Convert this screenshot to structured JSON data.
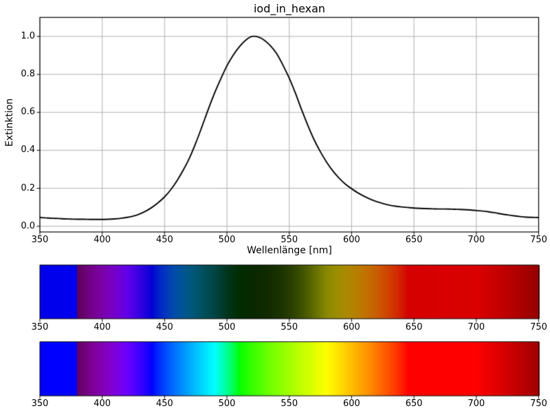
{
  "figure": {
    "background": "#ffffff",
    "text_color": "#000000"
  },
  "chart_data": [
    {
      "type": "line",
      "name": "absorption-spectrum",
      "title": "iod_in_hexan",
      "xlabel": "Wellenlänge [nm]",
      "ylabel": "Extinktion",
      "xlim": [
        350,
        750
      ],
      "ylim": [
        -0.03,
        1.1
      ],
      "xticks": [
        350,
        400,
        450,
        500,
        550,
        600,
        650,
        700,
        750
      ],
      "yticks": [
        0.0,
        0.2,
        0.4,
        0.6,
        0.8,
        1.0
      ],
      "ytick_labels": [
        "0.0",
        "0.2",
        "0.4",
        "0.6",
        "0.8",
        "1.0"
      ],
      "grid": true,
      "grid_color": "#b0b0b0",
      "axis_color": "#000000",
      "line_color": "#000000",
      "legend": "none",
      "series": [
        {
          "name": "Extinktion",
          "x": [
            350,
            355,
            360,
            365,
            370,
            375,
            380,
            385,
            390,
            395,
            400,
            405,
            410,
            415,
            420,
            425,
            430,
            435,
            440,
            445,
            450,
            455,
            460,
            465,
            470,
            475,
            480,
            485,
            490,
            495,
            500,
            505,
            510,
            515,
            520,
            525,
            530,
            535,
            540,
            545,
            550,
            555,
            560,
            565,
            570,
            575,
            580,
            585,
            590,
            595,
            600,
            605,
            610,
            615,
            620,
            625,
            630,
            635,
            640,
            645,
            650,
            655,
            660,
            665,
            670,
            675,
            680,
            685,
            690,
            695,
            700,
            705,
            710,
            715,
            720,
            725,
            730,
            735,
            740,
            745,
            750
          ],
          "y": [
            0.046,
            0.044,
            0.042,
            0.041,
            0.039,
            0.038,
            0.037,
            0.037,
            0.036,
            0.036,
            0.036,
            0.037,
            0.039,
            0.042,
            0.047,
            0.054,
            0.065,
            0.08,
            0.1,
            0.125,
            0.155,
            0.193,
            0.24,
            0.296,
            0.36,
            0.438,
            0.525,
            0.615,
            0.7,
            0.775,
            0.845,
            0.901,
            0.946,
            0.98,
            1.0,
            0.997,
            0.98,
            0.95,
            0.908,
            0.848,
            0.78,
            0.7,
            0.612,
            0.53,
            0.455,
            0.392,
            0.337,
            0.291,
            0.253,
            0.222,
            0.198,
            0.176,
            0.158,
            0.143,
            0.13,
            0.12,
            0.112,
            0.106,
            0.102,
            0.099,
            0.096,
            0.094,
            0.093,
            0.092,
            0.091,
            0.091,
            0.09,
            0.089,
            0.088,
            0.086,
            0.083,
            0.08,
            0.076,
            0.071,
            0.065,
            0.06,
            0.055,
            0.051,
            0.048,
            0.047,
            0.046
          ]
        }
      ],
      "annotations": {
        "peak_wavelength_nm": 521,
        "peak_extinktion": 1.0
      }
    },
    {
      "type": "heatmap",
      "name": "transmitted-spectrum-bar",
      "description": "Visible-light spectrum colors attenuated by the sample; transmission T = 10^(-Extinktion)",
      "x_range": [
        350,
        750
      ],
      "xticks": [
        350,
        400,
        450,
        500,
        550,
        600,
        650,
        700,
        750
      ],
      "border_color": "#000000"
    },
    {
      "type": "heatmap",
      "name": "full-spectrum-bar",
      "description": "Full visible-light spectrum color vs wavelength (black below 380 nm, dimming above 700 nm)",
      "x_range": [
        350,
        750
      ],
      "xticks": [
        350,
        400,
        450,
        500,
        550,
        600,
        650,
        700,
        750
      ],
      "border_color": "#000000"
    }
  ]
}
